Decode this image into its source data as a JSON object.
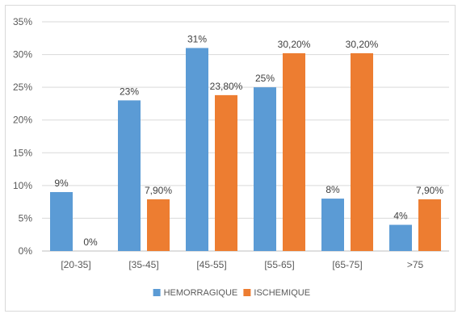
{
  "chart_data": {
    "type": "bar",
    "categories": [
      "[20-35]",
      "[35-45]",
      "[45-55]",
      "[55-65]",
      "[65-75]",
      ">75"
    ],
    "series": [
      {
        "name": "HEMORRAGIQUE",
        "color": "#5b9bd5",
        "values": [
          9,
          23,
          31,
          25,
          8,
          4
        ],
        "labels": [
          "9%",
          "23%",
          "31%",
          "25%",
          "8%",
          "4%"
        ]
      },
      {
        "name": "ISCHEMIQUE",
        "color": "#ed7d31",
        "values": [
          0,
          7.9,
          23.8,
          30.2,
          30.2,
          7.9
        ],
        "labels": [
          "0%",
          "7,90%",
          "23,80%",
          "30,20%",
          "30,20%",
          "7,90%"
        ]
      }
    ],
    "y_ticks": [
      "0%",
      "5%",
      "10%",
      "15%",
      "20%",
      "25%",
      "30%",
      "35%"
    ],
    "ylim": [
      0,
      35
    ],
    "grid": true,
    "legend_position": "bottom",
    "title": "",
    "xlabel": "",
    "ylabel": ""
  }
}
